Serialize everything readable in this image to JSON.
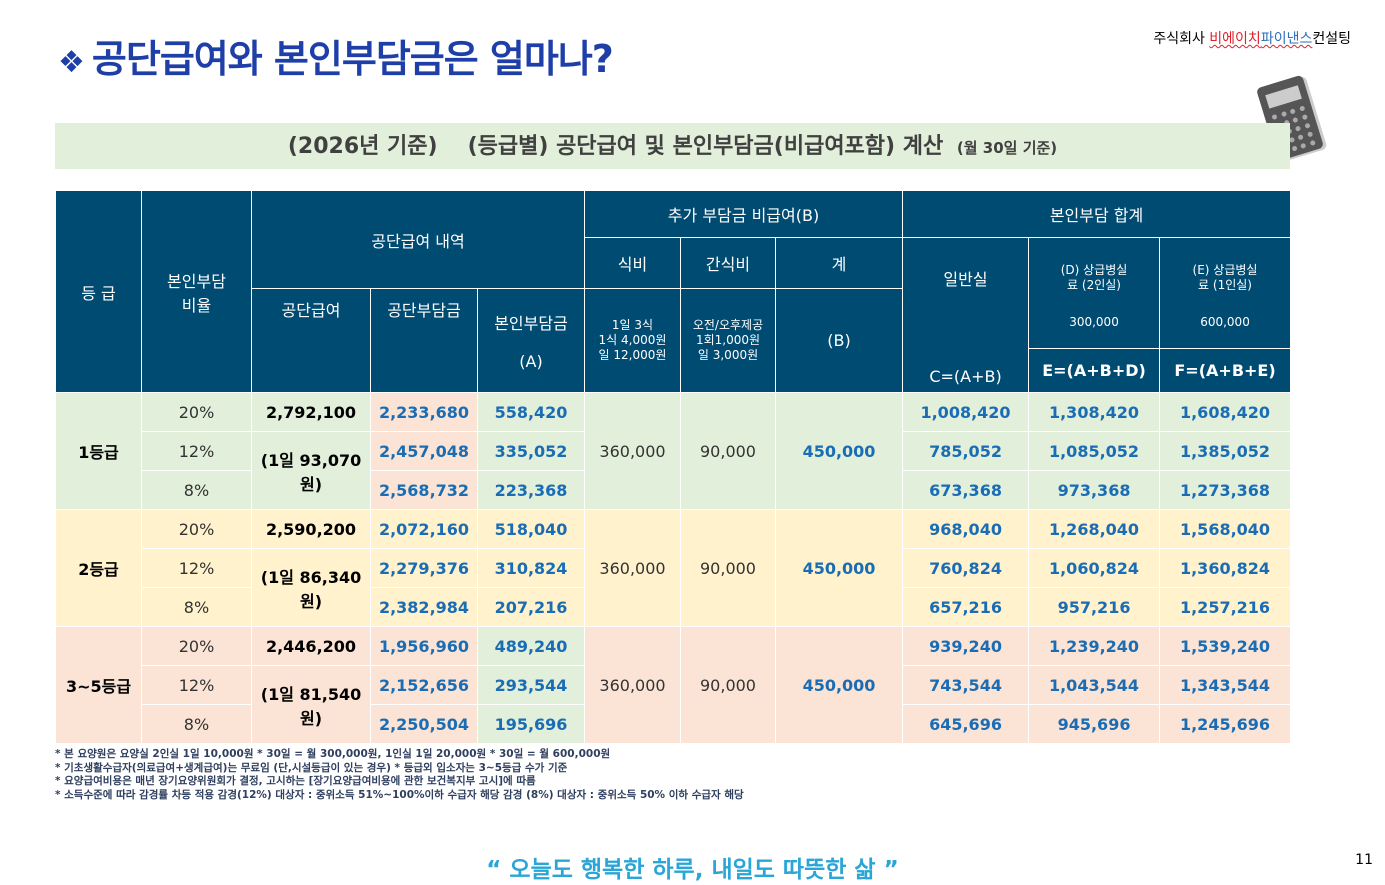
{
  "title": "공단급여와 본인부담금은 얼마나?",
  "title_icon": "diamond-bullet",
  "company": {
    "prefix": "주식회사 ",
    "red": "비에이치",
    "blue": "파이낸스",
    "suffix": "컨설팅"
  },
  "subtitle": {
    "year": "(2026년 기준)",
    "main": "(등급별) 공단급여 및 본인부담금(비급여포함) 계산",
    "note": "(월 30일 기준)"
  },
  "header": {
    "grade": "등 급",
    "ratio": "본인부담 비율",
    "benefit": "공단급여 내역",
    "extra": "추가 부담금 비급여(B)",
    "total": "본인부담 합계",
    "meal": "식비",
    "snack": "간식비",
    "sum": "계",
    "general": "일반실",
    "general_formula": "C=(A+B)",
    "d_label": "(D) 상급병실료 (2인실)",
    "d_value": "300,000",
    "e_label": "(E) 상급병실료 (1인실)",
    "e_value": "600,000",
    "benefit_total": "공단급여",
    "nhis_pay": "공단부담금",
    "self_pay": "본인부담금",
    "self_pay_code": "(A)",
    "meal_detail": [
      "1일 3식",
      "1식 4,000원",
      "일 12,000원"
    ],
    "snack_detail": [
      "오전/오후제공",
      "1회1,000원",
      "일 3,000원"
    ],
    "sum_code": "(B)",
    "e_formula": "E=(A+B+D)",
    "f_formula": "F=(A+B+E)"
  },
  "groups": [
    {
      "grade": "1등급",
      "total": "2,792,100",
      "daily": "(1일 93,070원)",
      "meal": "360,000",
      "snack": "90,000",
      "sum": "450,000",
      "rows": [
        {
          "ratio": "20%",
          "nhis": "2,233,680",
          "a": "558,420",
          "c": "1,008,420",
          "e": "1,308,420",
          "f": "1,608,420"
        },
        {
          "ratio": "12%",
          "nhis": "2,457,048",
          "a": "335,052",
          "c": "785,052",
          "e": "1,085,052",
          "f": "1,385,052"
        },
        {
          "ratio": "8%",
          "nhis": "2,568,732",
          "a": "223,368",
          "c": "673,368",
          "e": "973,368",
          "f": "1,273,368"
        }
      ]
    },
    {
      "grade": "2등급",
      "total": "2,590,200",
      "daily": "(1일 86,340원)",
      "meal": "360,000",
      "snack": "90,000",
      "sum": "450,000",
      "rows": [
        {
          "ratio": "20%",
          "nhis": "2,072,160",
          "a": "518,040",
          "c": "968,040",
          "e": "1,268,040",
          "f": "1,568,040"
        },
        {
          "ratio": "12%",
          "nhis": "2,279,376",
          "a": "310,824",
          "c": "760,824",
          "e": "1,060,824",
          "f": "1,360,824"
        },
        {
          "ratio": "8%",
          "nhis": "2,382,984",
          "a": "207,216",
          "c": "657,216",
          "e": "957,216",
          "f": "1,257,216"
        }
      ]
    },
    {
      "grade": "3~5등급",
      "total": "2,446,200",
      "daily": "(1일 81,540원)",
      "meal": "360,000",
      "snack": "90,000",
      "sum": "450,000",
      "rows": [
        {
          "ratio": "20%",
          "nhis": "1,956,960",
          "a": "489,240",
          "c": "939,240",
          "e": "1,239,240",
          "f": "1,539,240"
        },
        {
          "ratio": "12%",
          "nhis": "2,152,656",
          "a": "293,544",
          "c": "743,544",
          "e": "1,043,544",
          "f": "1,343,544"
        },
        {
          "ratio": "8%",
          "nhis": "2,250,504",
          "a": "195,696",
          "c": "645,696",
          "e": "945,696",
          "f": "1,245,696"
        }
      ]
    }
  ],
  "notes": [
    "* 본 요양원은 요양실 2인실 1일 10,000원 * 30일 =  월 300,000원,  1인실 1일 20,000원 * 30일 =  월 600,000원",
    "* 기초생활수급자(의료급여+생계급여)는 무료임 (단,시설등급이 있는 경우)    * 등급외 입소자는 3~5등급 수가 기준",
    "* 요양급여비용은 매년 장기요양위원회가 결정, 고시하는 [장기요양급여비용에 관한 보건복지부 고시]에 따름",
    "* 소득수준에 따라 감경률 차등 적용  감경(12%) 대상자 : 중위소득 51%~100%이하 수급자 해당  감경 (8%) 대상자 : 중위소득 50% 이하 수급자 해당"
  ],
  "quote": "“ 오늘도 행복한 하루, 내일도 따뜻한 삶 ”",
  "page_number": "11"
}
